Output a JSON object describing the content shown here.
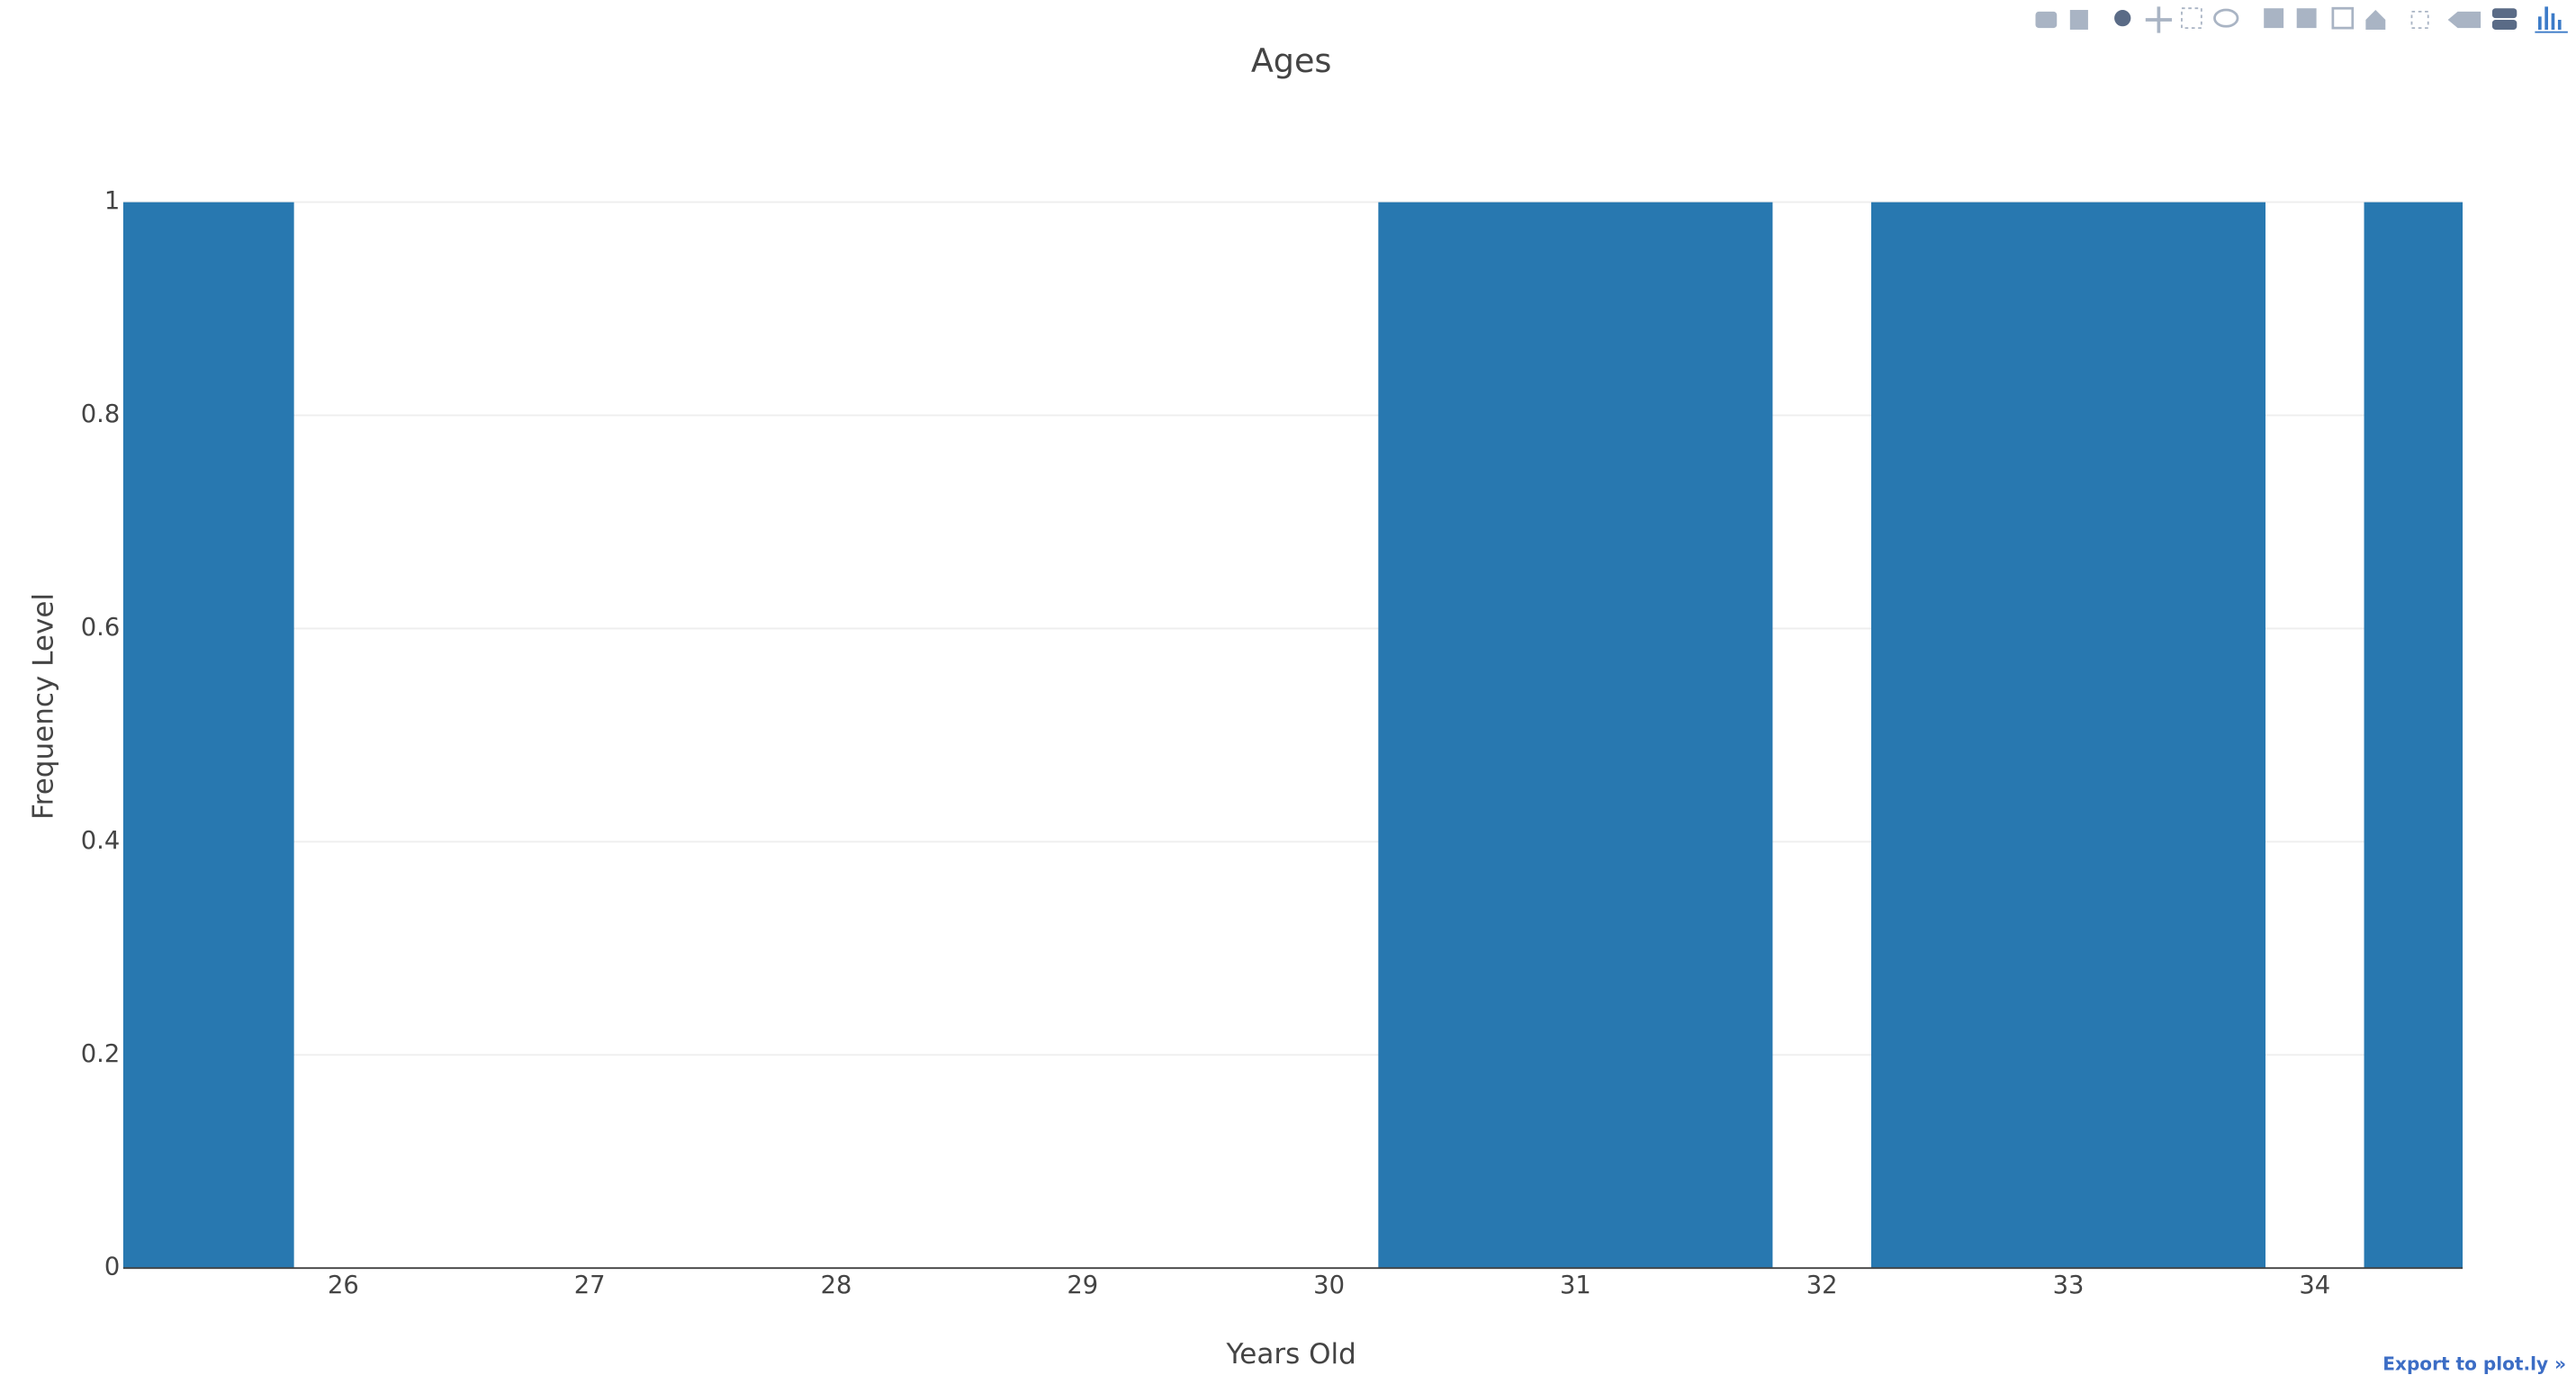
{
  "chart_data": {
    "type": "bar",
    "title": "Ages",
    "x_label": "Years Old",
    "y_label": "Frequency Level",
    "x": [
      25,
      31,
      33,
      35
    ],
    "values": [
      1,
      1,
      1,
      1
    ],
    "color": "#2878b0",
    "xlim": [
      25.107,
      34.6
    ],
    "xticks": [
      26,
      27,
      28,
      29,
      30,
      31,
      32,
      33,
      34
    ],
    "ylim": [
      0,
      1
    ],
    "yticks": [
      0,
      0.2,
      0.4,
      0.6,
      0.8,
      1
    ],
    "grid": true
  },
  "export_link": "Export to plot.ly »"
}
